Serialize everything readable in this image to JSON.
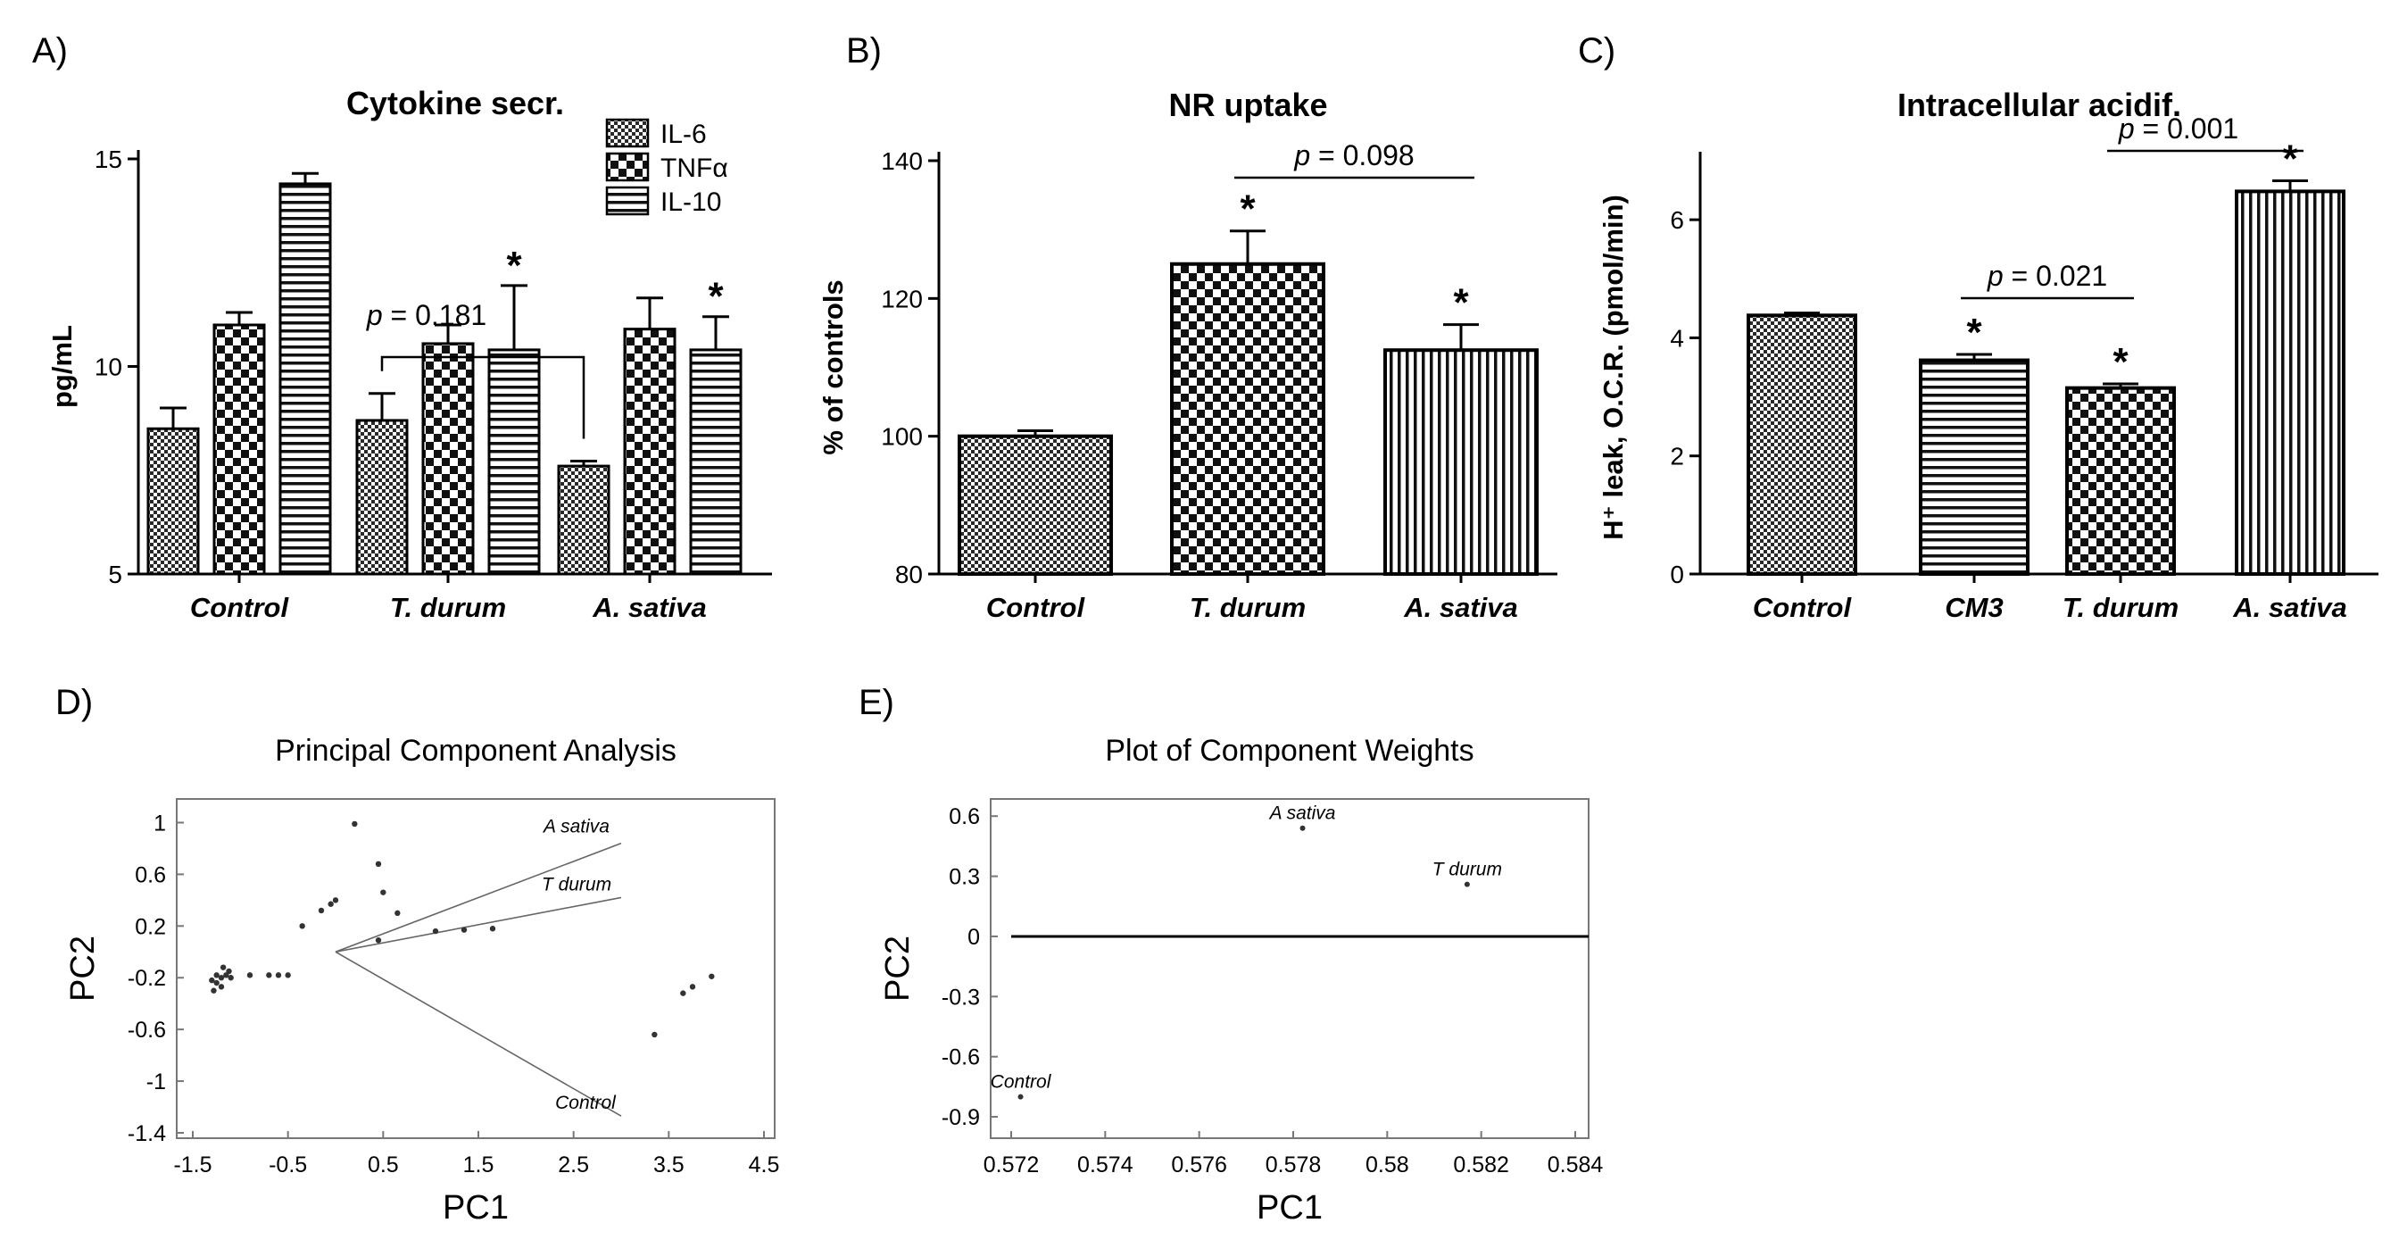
{
  "figure": {
    "panels": [
      "A)",
      "B)",
      "C)",
      "D)",
      "E)"
    ]
  },
  "chart_data": [
    {
      "id": "A",
      "type": "bar",
      "title": "Cytokine secr.",
      "ylabel": "pg/mL",
      "xlabel": "",
      "ylim": [
        5,
        15
      ],
      "yticks": [
        5,
        10,
        15
      ],
      "categories": [
        "Control",
        "T. durum",
        "A. sativa"
      ],
      "series": [
        {
          "name": "IL-6",
          "pattern": "fine-check",
          "values": [
            8.5,
            8.7,
            7.6
          ],
          "errors": [
            0.5,
            0.65,
            0.12
          ]
        },
        {
          "name": "TNFα",
          "pattern": "check",
          "values": [
            11.0,
            10.55,
            10.9
          ],
          "errors": [
            0.3,
            0.45,
            0.75
          ]
        },
        {
          "name": "IL-10",
          "pattern": "hstripe",
          "values": [
            14.4,
            10.4,
            10.4
          ],
          "errors": [
            0.25,
            1.55,
            0.8
          ]
        }
      ],
      "stars": [
        {
          "category": 1,
          "series": 2,
          "text": "*"
        },
        {
          "category": 2,
          "series": 2,
          "text": "*"
        }
      ],
      "brackets": [
        {
          "from": 1,
          "to": 2,
          "series": 0,
          "label": "p = 0.181"
        }
      ]
    },
    {
      "id": "B",
      "type": "bar",
      "title": "NR uptake",
      "ylabel": "% of controls",
      "xlabel": "",
      "ylim": [
        80,
        140
      ],
      "yticks": [
        80,
        100,
        120,
        140
      ],
      "categories": [
        "Control",
        "T. durum",
        "A. sativa"
      ],
      "patterns": [
        "fine-check",
        "check",
        "vstripe"
      ],
      "values": [
        100,
        125,
        112.5
      ],
      "errors": [
        0.8,
        4.8,
        3.7
      ],
      "stars": [
        {
          "index": 1,
          "text": "*"
        },
        {
          "index": 2,
          "text": "*"
        }
      ],
      "brackets": [
        {
          "from": 1,
          "to": 2,
          "label": "p = 0.098"
        }
      ]
    },
    {
      "id": "C",
      "type": "bar",
      "title": "Intracellular acidif.",
      "ylabel": "H⁺ leak, O.C.R. (pmol/min)",
      "xlabel": "",
      "ylim": [
        0,
        7
      ],
      "yticks": [
        0,
        2,
        4,
        6
      ],
      "categories": [
        "Control",
        "CM3",
        "T. durum",
        "A. sativa"
      ],
      "patterns": [
        "fine-check",
        "hstripe",
        "check",
        "vstripe"
      ],
      "values": [
        4.38,
        3.62,
        3.15,
        6.48
      ],
      "errors": [
        0.04,
        0.1,
        0.07,
        0.18
      ],
      "stars": [
        {
          "index": 1,
          "text": "*"
        },
        {
          "index": 2,
          "text": "*"
        },
        {
          "index": 3,
          "text": "*"
        }
      ],
      "brackets": [
        {
          "from": 1,
          "to": 2,
          "label": "p = 0.021"
        },
        {
          "from": 2,
          "to": 3,
          "label": "p = 0.001"
        }
      ]
    },
    {
      "id": "D",
      "type": "scatter",
      "title": "Principal Component Analysis",
      "xlabel": "PC1",
      "ylabel": "PC2",
      "xlim": [
        -1.5,
        4.5
      ],
      "ylim": [
        -1.4,
        1.1
      ],
      "xticks": [
        -1.5,
        -0.5,
        0.5,
        1.5,
        2.5,
        3.5,
        4.5
      ],
      "yticks": [
        -1.4,
        -1,
        -0.6,
        -0.2,
        0.2,
        0.6,
        1
      ],
      "points": [
        [
          -1.3,
          -0.22
        ],
        [
          -1.25,
          -0.24
        ],
        [
          -1.2,
          -0.2
        ],
        [
          -1.28,
          -0.3
        ],
        [
          -1.15,
          -0.18
        ],
        [
          -1.12,
          -0.15
        ],
        [
          -1.1,
          -0.2
        ],
        [
          -1.2,
          -0.27
        ],
        [
          -1.25,
          -0.18
        ],
        [
          -1.18,
          -0.12
        ],
        [
          -0.9,
          -0.18
        ],
        [
          -0.7,
          -0.18
        ],
        [
          -0.6,
          -0.18
        ],
        [
          -0.5,
          -0.18
        ],
        [
          -0.35,
          0.2
        ],
        [
          -0.15,
          0.32
        ],
        [
          -0.05,
          0.37
        ],
        [
          0.0,
          0.4
        ],
        [
          0.2,
          0.99
        ],
        [
          0.45,
          0.68
        ],
        [
          0.5,
          0.46
        ],
        [
          0.65,
          0.3
        ],
        [
          0.45,
          0.09
        ],
        [
          1.05,
          0.16
        ],
        [
          1.35,
          0.17
        ],
        [
          1.65,
          0.18
        ],
        [
          3.35,
          -0.64
        ],
        [
          3.65,
          -0.32
        ],
        [
          3.75,
          -0.27
        ],
        [
          3.95,
          -0.19
        ]
      ],
      "vectors": [
        {
          "label": "A sativa",
          "x": 3.0,
          "y": 0.84
        },
        {
          "label": "T durum",
          "x": 3.0,
          "y": 0.42
        },
        {
          "label": "Control",
          "x": 3.0,
          "y": -1.27
        }
      ]
    },
    {
      "id": "E",
      "type": "scatter",
      "title": "Plot of Component Weights",
      "xlabel": "PC1",
      "ylabel": "PC2",
      "xlim": [
        0.572,
        0.584
      ],
      "ylim": [
        -0.98,
        0.65
      ],
      "xticks": [
        0.572,
        0.574,
        0.576,
        0.578,
        0.58,
        0.582,
        0.584
      ],
      "yticks": [
        -0.9,
        -0.6,
        -0.3,
        0,
        0.3,
        0.6
      ],
      "points": [
        {
          "label": "A sativa",
          "x": 0.5782,
          "y": 0.54
        },
        {
          "label": "T durum",
          "x": 0.5817,
          "y": 0.26
        },
        {
          "label": "Control",
          "x": 0.5722,
          "y": -0.8
        }
      ],
      "zero_line": true
    }
  ]
}
